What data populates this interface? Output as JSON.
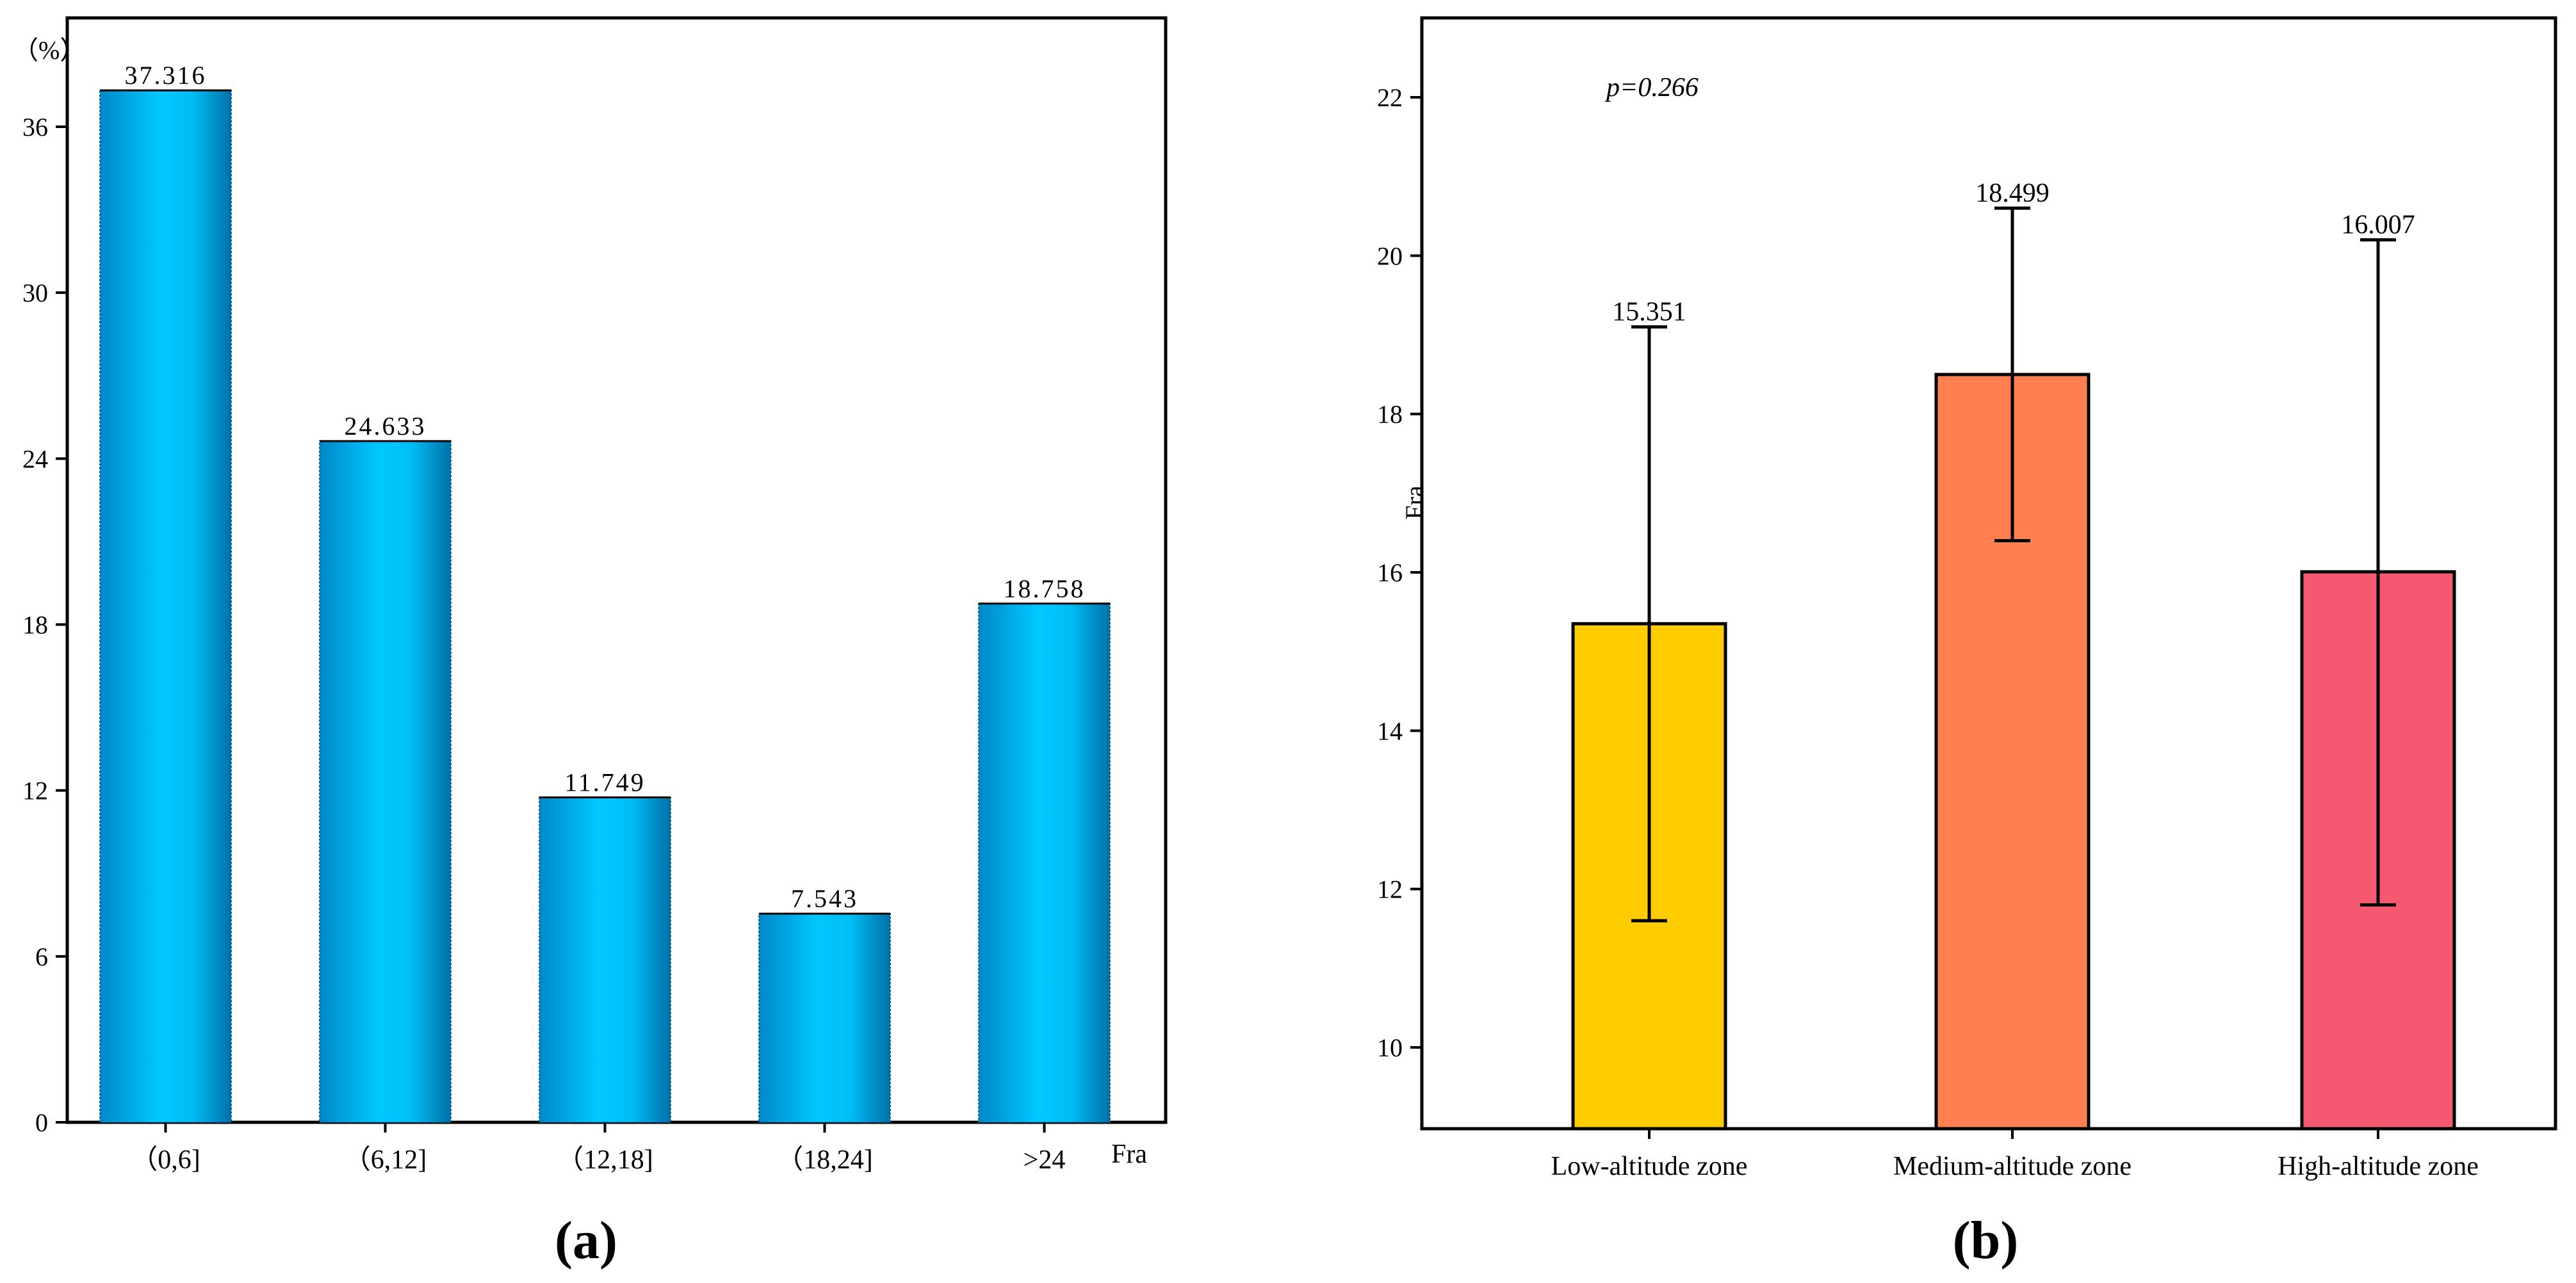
{
  "chart_data": [
    {
      "type": "bar",
      "panel_label": "(a)",
      "unit_label": "（%）",
      "xlabel": "Fra",
      "ylabel": "",
      "categories": [
        "（0,6]",
        "（6,12]",
        "（12,18]",
        "（18,24]",
        ">24"
      ],
      "values": [
        37.316,
        24.633,
        11.749,
        7.543,
        18.758
      ],
      "data_labels": [
        "37.316",
        "24.633",
        "11.749",
        "7.543",
        "18.758"
      ],
      "yticks": [
        0,
        6,
        12,
        18,
        24,
        30,
        36
      ],
      "ylim": [
        0,
        40
      ],
      "grid": false,
      "bar_color": "#00BFFF"
    },
    {
      "type": "bar",
      "panel_label": "(b)",
      "annotation": "p=0.266",
      "xlabel": "",
      "ylabel": "Fra",
      "categories": [
        "Low-altitude zone",
        "Medium-altitude zone",
        "High-altitude zone"
      ],
      "values": [
        15.351,
        18.499,
        16.007
      ],
      "data_labels": [
        "15.351",
        "18.499",
        "16.007"
      ],
      "error_low": [
        11.6,
        16.4,
        11.8
      ],
      "error_high": [
        19.1,
        20.6,
        20.2
      ],
      "colors": [
        "#FFCC00",
        "#FF7F50",
        "#F5586F"
      ],
      "yticks": [
        10,
        12,
        14,
        16,
        18,
        20,
        22
      ],
      "ylim": [
        9,
        23
      ],
      "grid": false
    }
  ]
}
